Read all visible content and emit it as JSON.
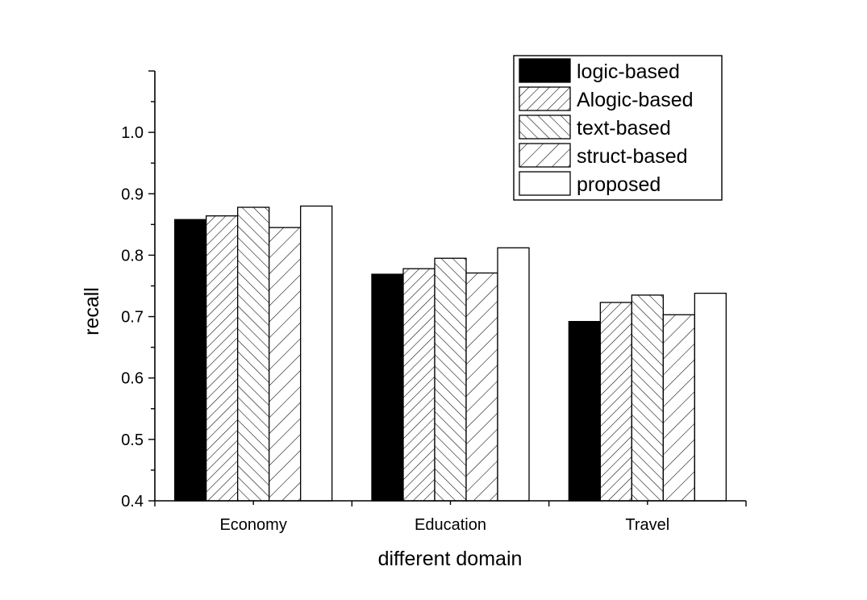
{
  "chart_data": {
    "type": "bar",
    "title": "",
    "xlabel": "different domain",
    "ylabel": "recall",
    "ylim": [
      0.4,
      1.1
    ],
    "yticks": [
      "0.4",
      "0.5",
      "0.6",
      "0.7",
      "0.8",
      "0.9",
      "1.0"
    ],
    "categories": [
      "Economy",
      "Education",
      "Travel"
    ],
    "legend_position": "top-right",
    "grid": false,
    "series": [
      {
        "name": "logic-based",
        "pattern": "solid-black",
        "values": [
          0.858,
          0.769,
          0.692
        ]
      },
      {
        "name": "Alogic-based",
        "pattern": "forward-hatch-dense",
        "values": [
          0.864,
          0.778,
          0.723
        ]
      },
      {
        "name": "text-based",
        "pattern": "back-hatch",
        "values": [
          0.878,
          0.795,
          0.735
        ]
      },
      {
        "name": "struct-based",
        "pattern": "forward-hatch-sparse",
        "values": [
          0.845,
          0.771,
          0.703
        ]
      },
      {
        "name": "proposed",
        "pattern": "white",
        "values": [
          0.88,
          0.812,
          0.738
        ]
      }
    ]
  }
}
